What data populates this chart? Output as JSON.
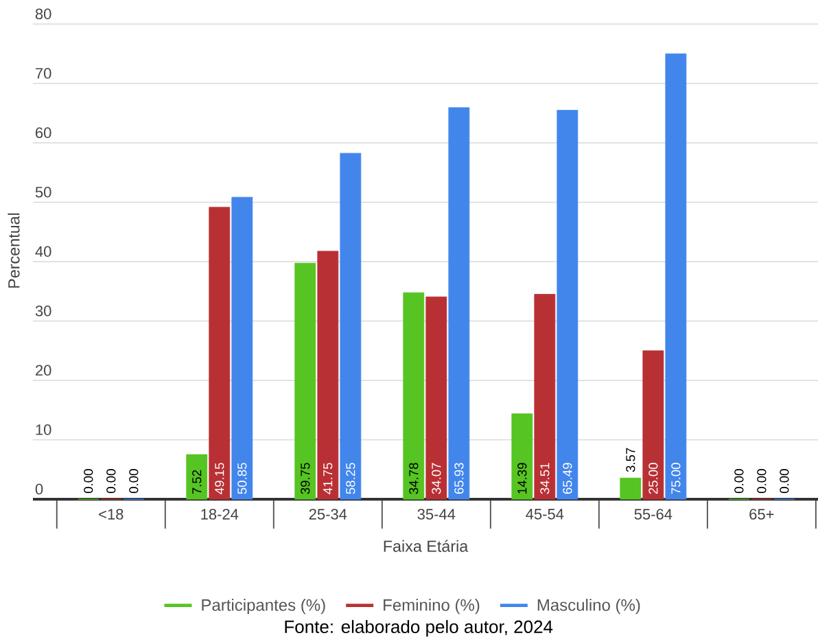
{
  "chart_data": {
    "type": "bar",
    "xlabel": "Faixa Etária",
    "ylabel": "Percentual",
    "categories": [
      "<18",
      "18-24",
      "25-34",
      "35-44",
      "45-54",
      "55-64",
      "65+"
    ],
    "series": [
      {
        "name": "Participantes (%)",
        "color": "#56c422",
        "values": [
          0,
          7.52,
          39.75,
          34.78,
          14.39,
          3.57,
          0
        ],
        "value_labels": [
          "0.00",
          "7.52",
          "39.75",
          "34.78",
          "14.39",
          "3.57",
          "0.00"
        ]
      },
      {
        "name": "Feminino (%)",
        "color": "#b93034",
        "values": [
          0,
          49.15,
          41.75,
          34.07,
          34.51,
          25.0,
          0
        ],
        "value_labels": [
          "0.00",
          "49.15",
          "41.75",
          "34.07",
          "34.51",
          "25.00",
          "0.00"
        ]
      },
      {
        "name": "Masculino (%)",
        "color": "#4286ec",
        "values": [
          0,
          50.85,
          58.25,
          65.93,
          65.49,
          75.0,
          0
        ],
        "value_labels": [
          "0.00",
          "50.85",
          "58.25",
          "65.93",
          "65.49",
          "75.00",
          "0.00"
        ]
      }
    ],
    "ylim": [
      0,
      80
    ],
    "yticks": [
      0,
      10,
      20,
      30,
      40,
      50,
      60,
      70,
      80
    ],
    "grid": "y",
    "legend": "bottom",
    "annotations": [
      "Fonte: elaborado pelo autor, 2024"
    ]
  }
}
